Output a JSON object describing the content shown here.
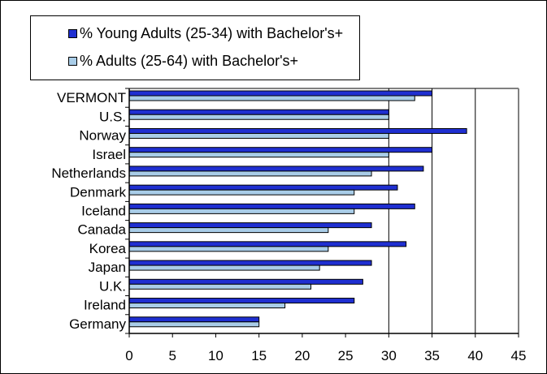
{
  "chart_data": {
    "type": "bar",
    "orientation": "horizontal",
    "categories": [
      "VERMONT",
      "U.S.",
      "Norway",
      "Israel",
      "Netherlands",
      "Denmark",
      "Iceland",
      "Canada",
      "Korea",
      "Japan",
      "U.K.",
      "Ireland",
      "Germany"
    ],
    "series": [
      {
        "name": "% Young Adults (25-34) with Bachelor's+",
        "color": "#1f2fd1",
        "values": [
          35,
          30,
          39,
          35,
          34,
          31,
          33,
          28,
          32,
          28,
          27,
          26,
          15
        ]
      },
      {
        "name": "% Adults (25-64) with Bachelor's+",
        "color": "#a9cde8",
        "values": [
          33,
          30,
          30,
          30,
          28,
          26,
          26,
          23,
          23,
          22,
          21,
          18,
          15
        ]
      }
    ],
    "xlim": [
      0,
      45
    ],
    "xticks": [
      0,
      5,
      10,
      15,
      20,
      25,
      30,
      35,
      40,
      45
    ],
    "tick_labels": [
      "0",
      "5",
      "10",
      "15",
      "20",
      "25",
      "30",
      "35",
      "40",
      "45"
    ],
    "grid": "vertical at 30, 35, 40",
    "legend_position": "top-left"
  }
}
